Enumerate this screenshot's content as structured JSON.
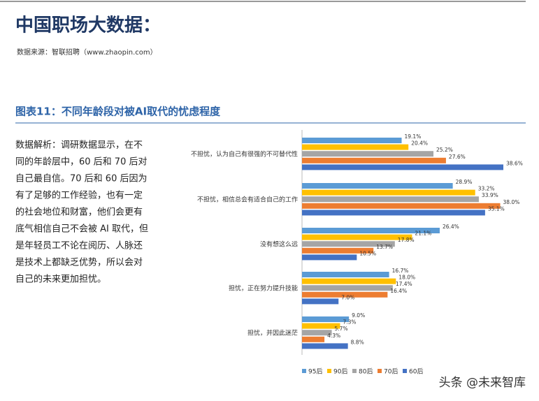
{
  "header": {
    "title": "中国职场大数据：",
    "source": "数据来源：智联招聘（www.zhaopin.com）"
  },
  "figure_title": "图表11：不同年龄段对被AI取代的忧虑程度",
  "analysis": [
    "数据解析：调研数据显示，在不",
    "同的年龄层中，60 后和 70 后对",
    "自己最自信。70 后和 60 后因为",
    "有了足够的工作经验，也有一定",
    "的社会地位和财富，他们会更有",
    "底气相信自己不会被 AI 取代，但",
    "是年轻员工不论在阅历、人脉还",
    "是技术上都缺乏优势，所以会对",
    "自己的未来更加担忧。"
  ],
  "watermark": "头条 @未来智库",
  "chart_data": {
    "type": "hbar",
    "categories": [
      "不担忧，认为自己有很强的不可替代性",
      "不担忧，相信总会有适合自己的工作",
      "没有想这么远",
      "担忧，正在努力提升技能",
      "担忧，并因此迷茫"
    ],
    "series": [
      {
        "name": "95后",
        "color": "#5b9bd5",
        "values": [
          19.1,
          28.9,
          26.4,
          16.7,
          9.0
        ],
        "value_labels": [
          "19.1%",
          "28.9%",
          "26.4%",
          "16.7%",
          "9.0%"
        ]
      },
      {
        "name": "90后",
        "color": "#ffc000",
        "values": [
          20.4,
          33.2,
          21.1,
          18.0,
          7.3
        ],
        "value_labels": [
          "20.4%",
          "33.2%",
          "21.1%",
          "18.0%",
          "7.3%"
        ]
      },
      {
        "name": "80后",
        "color": "#a5a5a5",
        "values": [
          25.2,
          33.9,
          17.8,
          17.4,
          5.7
        ],
        "value_labels": [
          "25.2%",
          "33.9%",
          "17.8%",
          "17.4%",
          "5.7%"
        ]
      },
      {
        "name": "70后",
        "color": "#ed7d31",
        "values": [
          27.6,
          38.0,
          13.7,
          16.4,
          4.3
        ],
        "value_labels": [
          "27.6%",
          "38.0%",
          "13.7%",
          "16.4%",
          "4.3%"
        ]
      },
      {
        "name": "60后",
        "color": "#4472c4",
        "values": [
          38.6,
          35.1,
          10.5,
          7.0,
          8.8
        ],
        "value_labels": [
          "38.6%",
          "35.1%",
          "10.5%",
          "7.0%",
          "8.8%"
        ]
      }
    ],
    "legend": "bottom"
  }
}
